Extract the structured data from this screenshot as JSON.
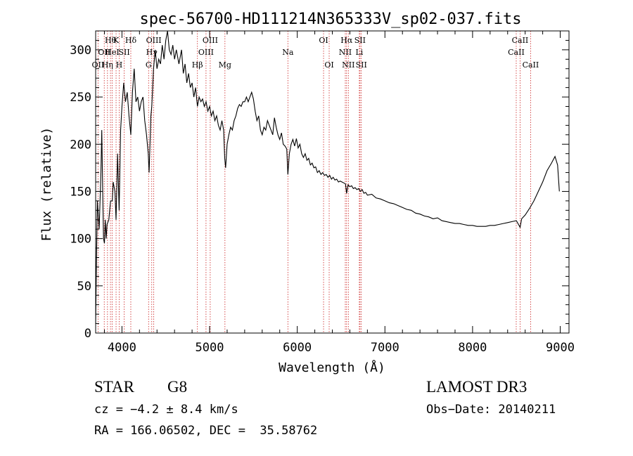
{
  "chart_data": {
    "type": "line",
    "title": "spec-56700-HD111214N365333V_sp02-037.fits",
    "xlabel": "Wavelength (Å)",
    "ylabel": "Flux (relative)",
    "xlim": [
      3700,
      9100
    ],
    "ylim": [
      0,
      320
    ],
    "xticks": [
      4000,
      5000,
      6000,
      7000,
      8000,
      9000
    ],
    "yticks": [
      0,
      50,
      100,
      150,
      200,
      250,
      300
    ],
    "grid": false,
    "series": [
      {
        "points": [
          [
            3700,
            10
          ],
          [
            3710,
            80
          ],
          [
            3720,
            140
          ],
          [
            3740,
            110
          ],
          [
            3760,
            170
          ],
          [
            3770,
            215
          ],
          [
            3780,
            150
          ],
          [
            3790,
            100
          ],
          [
            3800,
            95
          ],
          [
            3810,
            120
          ],
          [
            3820,
            100
          ],
          [
            3830,
            115
          ],
          [
            3850,
            120
          ],
          [
            3870,
            140
          ],
          [
            3890,
            140
          ],
          [
            3900,
            160
          ],
          [
            3920,
            150
          ],
          [
            3933,
            120
          ],
          [
            3950,
            190
          ],
          [
            3968,
            130
          ],
          [
            3985,
            215
          ],
          [
            4000,
            240
          ],
          [
            4020,
            265
          ],
          [
            4040,
            245
          ],
          [
            4060,
            255
          ],
          [
            4080,
            230
          ],
          [
            4101,
            210
          ],
          [
            4120,
            255
          ],
          [
            4140,
            280
          ],
          [
            4160,
            245
          ],
          [
            4180,
            250
          ],
          [
            4200,
            235
          ],
          [
            4220,
            245
          ],
          [
            4240,
            250
          ],
          [
            4260,
            225
          ],
          [
            4280,
            210
          ],
          [
            4300,
            190
          ],
          [
            4310,
            170
          ],
          [
            4330,
            230
          ],
          [
            4340,
            240
          ],
          [
            4360,
            280
          ],
          [
            4380,
            300
          ],
          [
            4400,
            280
          ],
          [
            4420,
            290
          ],
          [
            4440,
            285
          ],
          [
            4460,
            305
          ],
          [
            4480,
            290
          ],
          [
            4500,
            310
          ],
          [
            4520,
            330
          ],
          [
            4540,
            300
          ],
          [
            4560,
            295
          ],
          [
            4580,
            305
          ],
          [
            4600,
            290
          ],
          [
            4620,
            300
          ],
          [
            4650,
            285
          ],
          [
            4680,
            300
          ],
          [
            4700,
            275
          ],
          [
            4720,
            285
          ],
          [
            4740,
            265
          ],
          [
            4760,
            275
          ],
          [
            4780,
            260
          ],
          [
            4800,
            265
          ],
          [
            4820,
            250
          ],
          [
            4840,
            260
          ],
          [
            4861,
            240
          ],
          [
            4880,
            250
          ],
          [
            4900,
            245
          ],
          [
            4920,
            248
          ],
          [
            4940,
            240
          ],
          [
            4960,
            245
          ],
          [
            4980,
            235
          ],
          [
            5000,
            240
          ],
          [
            5020,
            230
          ],
          [
            5040,
            235
          ],
          [
            5060,
            225
          ],
          [
            5080,
            230
          ],
          [
            5100,
            220
          ],
          [
            5120,
            215
          ],
          [
            5140,
            225
          ],
          [
            5160,
            215
          ],
          [
            5172,
            185
          ],
          [
            5183,
            175
          ],
          [
            5200,
            200
          ],
          [
            5220,
            210
          ],
          [
            5240,
            218
          ],
          [
            5260,
            215
          ],
          [
            5280,
            225
          ],
          [
            5300,
            230
          ],
          [
            5320,
            238
          ],
          [
            5340,
            242
          ],
          [
            5360,
            240
          ],
          [
            5380,
            245
          ],
          [
            5400,
            245
          ],
          [
            5420,
            250
          ],
          [
            5440,
            245
          ],
          [
            5460,
            250
          ],
          [
            5480,
            255
          ],
          [
            5500,
            248
          ],
          [
            5520,
            235
          ],
          [
            5540,
            225
          ],
          [
            5560,
            230
          ],
          [
            5580,
            215
          ],
          [
            5600,
            210
          ],
          [
            5620,
            218
          ],
          [
            5640,
            215
          ],
          [
            5660,
            225
          ],
          [
            5680,
            220
          ],
          [
            5700,
            215
          ],
          [
            5720,
            210
          ],
          [
            5740,
            228
          ],
          [
            5760,
            218
          ],
          [
            5780,
            210
          ],
          [
            5800,
            205
          ],
          [
            5820,
            212
          ],
          [
            5840,
            200
          ],
          [
            5860,
            198
          ],
          [
            5880,
            195
          ],
          [
            5893,
            168
          ],
          [
            5910,
            190
          ],
          [
            5930,
            200
          ],
          [
            5950,
            205
          ],
          [
            5970,
            198
          ],
          [
            5990,
            206
          ],
          [
            6010,
            196
          ],
          [
            6030,
            200
          ],
          [
            6050,
            190
          ],
          [
            6070,
            186
          ],
          [
            6090,
            190
          ],
          [
            6110,
            183
          ],
          [
            6130,
            185
          ],
          [
            6150,
            178
          ],
          [
            6170,
            180
          ],
          [
            6190,
            175
          ],
          [
            6210,
            176
          ],
          [
            6230,
            170
          ],
          [
            6250,
            172
          ],
          [
            6270,
            168
          ],
          [
            6290,
            170
          ],
          [
            6310,
            167
          ],
          [
            6330,
            168
          ],
          [
            6350,
            165
          ],
          [
            6370,
            167
          ],
          [
            6390,
            163
          ],
          [
            6410,
            165
          ],
          [
            6430,
            162
          ],
          [
            6450,
            163
          ],
          [
            6470,
            160
          ],
          [
            6490,
            161
          ],
          [
            6510,
            160
          ],
          [
            6530,
            159
          ],
          [
            6550,
            158
          ],
          [
            6563,
            148
          ],
          [
            6580,
            157
          ],
          [
            6600,
            155
          ],
          [
            6620,
            156
          ],
          [
            6640,
            153
          ],
          [
            6660,
            154
          ],
          [
            6680,
            152
          ],
          [
            6700,
            153
          ],
          [
            6720,
            150
          ],
          [
            6740,
            152
          ],
          [
            6760,
            148
          ],
          [
            6780,
            149
          ],
          [
            6800,
            146
          ],
          [
            6850,
            147
          ],
          [
            6900,
            143
          ],
          [
            6950,
            142
          ],
          [
            7000,
            140
          ],
          [
            7050,
            138
          ],
          [
            7100,
            137
          ],
          [
            7150,
            135
          ],
          [
            7200,
            133
          ],
          [
            7250,
            131
          ],
          [
            7300,
            130
          ],
          [
            7350,
            127
          ],
          [
            7400,
            126
          ],
          [
            7450,
            124
          ],
          [
            7500,
            123
          ],
          [
            7550,
            121
          ],
          [
            7600,
            122
          ],
          [
            7650,
            119
          ],
          [
            7700,
            118
          ],
          [
            7750,
            117
          ],
          [
            7800,
            116
          ],
          [
            7850,
            116
          ],
          [
            7900,
            115
          ],
          [
            7950,
            114
          ],
          [
            8000,
            114
          ],
          [
            8050,
            113
          ],
          [
            8100,
            113
          ],
          [
            8150,
            113
          ],
          [
            8200,
            114
          ],
          [
            8250,
            114
          ],
          [
            8300,
            115
          ],
          [
            8350,
            116
          ],
          [
            8400,
            117
          ],
          [
            8450,
            118
          ],
          [
            8500,
            119
          ],
          [
            8542,
            112
          ],
          [
            8560,
            121
          ],
          [
            8600,
            125
          ],
          [
            8650,
            132
          ],
          [
            8700,
            140
          ],
          [
            8750,
            150
          ],
          [
            8800,
            160
          ],
          [
            8850,
            172
          ],
          [
            8900,
            180
          ],
          [
            8940,
            187
          ],
          [
            8970,
            178
          ],
          [
            8990,
            150
          ]
        ]
      }
    ],
    "line_markers": {
      "color": "#cc2222",
      "lines": [
        {
          "x": 3727,
          "label": "OII",
          "row": 2
        },
        {
          "x": 3798,
          "label": "OII",
          "row": 1
        },
        {
          "x": 3835,
          "label": "Hη",
          "row": 2
        },
        {
          "x": 3869,
          "label": "Hθ",
          "row": 0
        },
        {
          "x": 3889,
          "label": "HeI",
          "row": 1
        },
        {
          "x": 3933,
          "label": "K",
          "row": 0
        },
        {
          "x": 3968,
          "label": "H",
          "row": 2
        },
        {
          "x": 4026,
          "label": "SII",
          "row": 1
        },
        {
          "x": 4101,
          "label": "Hδ",
          "row": 0
        },
        {
          "x": 4304,
          "label": "G",
          "row": 2
        },
        {
          "x": 4340,
          "label": "Hγ",
          "row": 1
        },
        {
          "x": 4363,
          "label": "OIII",
          "row": 0
        },
        {
          "x": 4861,
          "label": "Hβ",
          "row": 2
        },
        {
          "x": 4959,
          "label": "OIII",
          "row": 1
        },
        {
          "x": 5007,
          "label": "OIII",
          "row": 0
        },
        {
          "x": 5175,
          "label": "Mg",
          "row": 2
        },
        {
          "x": 5893,
          "label": "Na",
          "row": 1
        },
        {
          "x": 6300,
          "label": "OI",
          "row": 0
        },
        {
          "x": 6364,
          "label": "OI",
          "row": 2
        },
        {
          "x": 6548,
          "label": "NII",
          "row": 1
        },
        {
          "x": 6563,
          "label": "Hα",
          "row": 0
        },
        {
          "x": 6583,
          "label": "NII",
          "row": 2
        },
        {
          "x": 6708,
          "label": "Li",
          "row": 1
        },
        {
          "x": 6716,
          "label": "SII",
          "row": 0
        },
        {
          "x": 6731,
          "label": "SII",
          "row": 2
        },
        {
          "x": 8498,
          "label": "CaII",
          "row": 1
        },
        {
          "x": 8542,
          "label": "CaII",
          "row": 0
        },
        {
          "x": 8662,
          "label": "CaII",
          "row": 2
        }
      ]
    }
  },
  "info": {
    "object_class": "STAR",
    "subclass": "G8",
    "survey": "LAMOST DR3",
    "redshift": "cz = −4.2 ± 8.4 km/s",
    "obs_date": "Obs−Date: 20140211",
    "coords": "RA = 166.06502, DEC =  35.58762"
  }
}
